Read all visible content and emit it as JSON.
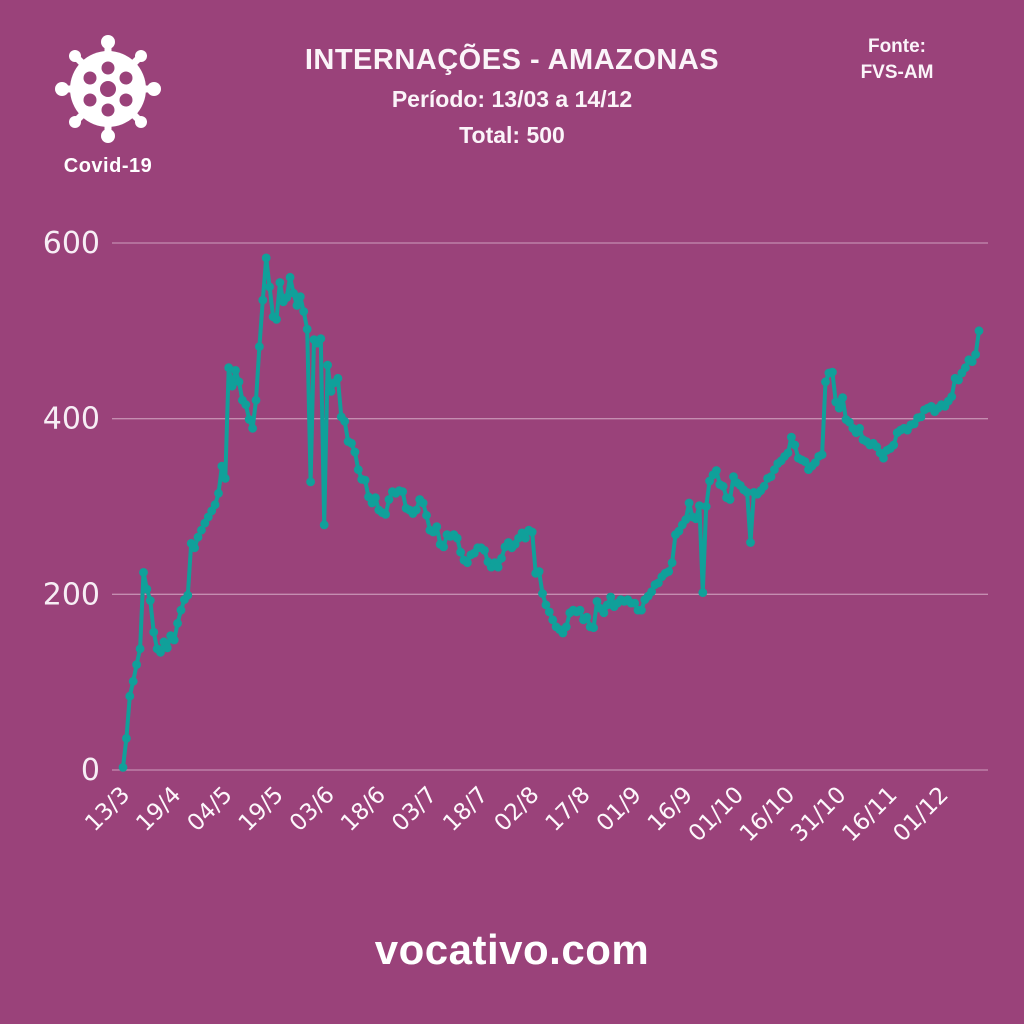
{
  "page": {
    "background_color": "#9a427a",
    "accent_color": "#10a09a",
    "footer_text": "vocativo.com"
  },
  "header": {
    "badge_label": "Covid-19",
    "title": "INTERNAÇÕES - AMAZONAS",
    "subtitle": "Período: 13/03 a 14/12",
    "total": "Total: 500",
    "source_label": "Fonte:",
    "source_value": "FVS-AM"
  },
  "chart_data": {
    "type": "line",
    "title": "INTERNAÇÕES - AMAZONAS",
    "period": "13/03 a 14/12",
    "latest_total": 500,
    "line_color": "#10a09a",
    "marker": "circle",
    "grid": "horizontal",
    "ylim": [
      0,
      620
    ],
    "y_ticks": [
      0,
      200,
      400,
      600
    ],
    "x_tick_every": 15,
    "x_tick_labels": [
      "13/3",
      "19/4",
      "04/5",
      "19/5",
      "03/6",
      "18/6",
      "03/7",
      "18/7",
      "02/8",
      "17/8",
      "01/9",
      "16/9",
      "01/10",
      "16/10",
      "31/10",
      "16/11",
      "01/12"
    ],
    "values": [
      3,
      36,
      84,
      101,
      120,
      138,
      225,
      206,
      193,
      157,
      138,
      134,
      146,
      139,
      153,
      148,
      167,
      182,
      194,
      199,
      258,
      253,
      265,
      273,
      281,
      288,
      295,
      302,
      315,
      346,
      332,
      458,
      437,
      455,
      442,
      421,
      416,
      399,
      389,
      421,
      482,
      535,
      583,
      550,
      516,
      513,
      555,
      533,
      538,
      561,
      543,
      529,
      539,
      522,
      502,
      328,
      490,
      486,
      491,
      279,
      461,
      431,
      441,
      446,
      402,
      397,
      374,
      372,
      362,
      342,
      331,
      330,
      311,
      304,
      310,
      296,
      293,
      291,
      308,
      317,
      315,
      318,
      317,
      298,
      296,
      292,
      296,
      308,
      304,
      290,
      273,
      271,
      277,
      257,
      254,
      268,
      266,
      268,
      264,
      248,
      239,
      236,
      245,
      247,
      253,
      253,
      250,
      237,
      231,
      236,
      231,
      241,
      254,
      259,
      253,
      257,
      264,
      270,
      264,
      273,
      271,
      224,
      226,
      201,
      188,
      180,
      171,
      163,
      160,
      156,
      163,
      179,
      182,
      180,
      182,
      171,
      174,
      163,
      162,
      192,
      184,
      179,
      188,
      197,
      186,
      190,
      194,
      192,
      194,
      190,
      190,
      182,
      182,
      194,
      198,
      203,
      211,
      213,
      220,
      224,
      226,
      236,
      268,
      272,
      279,
      285,
      304,
      288,
      286,
      301,
      202,
      300,
      329,
      336,
      341,
      325,
      323,
      310,
      308,
      334,
      327,
      324,
      319,
      316,
      259,
      316,
      314,
      318,
      323,
      332,
      334,
      342,
      349,
      352,
      357,
      361,
      379,
      370,
      355,
      353,
      351,
      342,
      346,
      350,
      357,
      359,
      442,
      452,
      453,
      419,
      412,
      424,
      399,
      396,
      389,
      384,
      389,
      376,
      374,
      370,
      372,
      368,
      361,
      355,
      364,
      366,
      370,
      384,
      387,
      389,
      387,
      393,
      394,
      401,
      402,
      410,
      412,
      414,
      408,
      412,
      416,
      414,
      420,
      425,
      446,
      444,
      452,
      458,
      467,
      465,
      473,
      500
    ]
  }
}
